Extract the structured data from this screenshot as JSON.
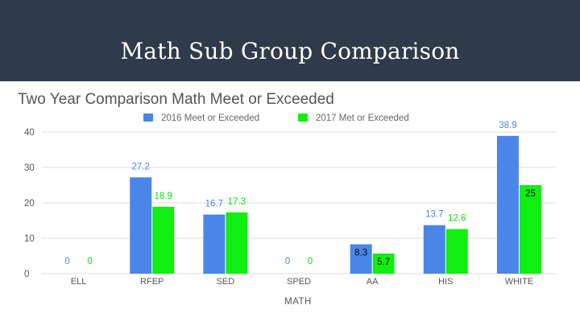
{
  "slide": {
    "title": "Math Sub Group Comparison"
  },
  "chart_data": {
    "type": "bar",
    "title": "Two Year Comparison Math Meet or Exceeded",
    "xlabel": "MATH",
    "ylabel": "",
    "ylim": [
      0,
      40
    ],
    "yticks": [
      0,
      10,
      20,
      30,
      40
    ],
    "grid": true,
    "legend_position": "top",
    "categories": [
      "ELL",
      "RFEP",
      "SED",
      "SPED",
      "AA",
      "HIS",
      "WHITE"
    ],
    "series": [
      {
        "name": "2016 Meet or Exceeded",
        "color": "#4a86e8",
        "values": [
          0,
          27.2,
          16.7,
          0,
          8.3,
          13.7,
          38.9
        ]
      },
      {
        "name": "2017 Met or Exceeded",
        "color": "#11ee11",
        "values": [
          0,
          18.9,
          17.3,
          0,
          5.7,
          12.6,
          25
        ]
      }
    ]
  }
}
